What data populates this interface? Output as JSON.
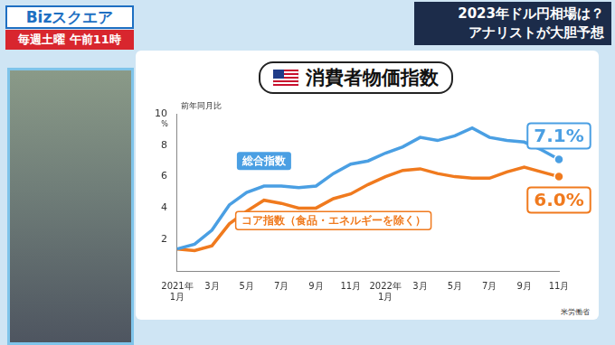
{
  "screen": {
    "program": "Bizスクエア",
    "schedule": "毎週土曜 午前11時",
    "caption": [
      "2023年ドル円相場は？",
      "アナリストが大胆予想"
    ]
  },
  "chart_data": {
    "type": "line",
    "title": "消費者物価指数",
    "ylabel": "前年同月比",
    "y_unit": "%",
    "source": "米労働省",
    "categories": [
      "2021年\n1月",
      null,
      "3月",
      null,
      "5月",
      null,
      "7月",
      null,
      "9月",
      null,
      "11月",
      null,
      "2022年\n1月",
      null,
      "3月",
      null,
      "5月",
      null,
      "7月",
      null,
      "9月",
      null,
      "11月"
    ],
    "series": [
      {
        "name": "総合指数",
        "color": "#4a9fe3",
        "marker": "last",
        "values": [
          1.4,
          1.7,
          2.6,
          4.2,
          5.0,
          5.4,
          5.4,
          5.3,
          5.4,
          6.2,
          6.8,
          7.0,
          7.5,
          7.9,
          8.5,
          8.3,
          8.6,
          9.1,
          8.5,
          8.3,
          8.2,
          7.7,
          7.1
        ],
        "value_labels": [
          null,
          null,
          null,
          null,
          null,
          null,
          null,
          null,
          null,
          null,
          null,
          null,
          null,
          null,
          null,
          null,
          null,
          null,
          null,
          null,
          null,
          null,
          "7.1%"
        ]
      },
      {
        "name": "コア指数（食品・エネルギーを除く）",
        "color": "#f07a1e",
        "marker": "last",
        "values": [
          1.4,
          1.3,
          1.6,
          3.0,
          3.8,
          4.5,
          4.3,
          4.0,
          4.0,
          4.6,
          4.9,
          5.5,
          6.0,
          6.4,
          6.5,
          6.2,
          6.0,
          5.9,
          5.9,
          6.3,
          6.6,
          6.3,
          6.0
        ],
        "value_labels": [
          null,
          null,
          null,
          null,
          null,
          null,
          null,
          null,
          null,
          null,
          null,
          null,
          null,
          null,
          null,
          null,
          null,
          null,
          null,
          null,
          null,
          null,
          "6.0%"
        ]
      }
    ],
    "ylim": [
      0,
      10
    ],
    "yticks": [
      2,
      4,
      6,
      8,
      10
    ],
    "grid": false
  }
}
